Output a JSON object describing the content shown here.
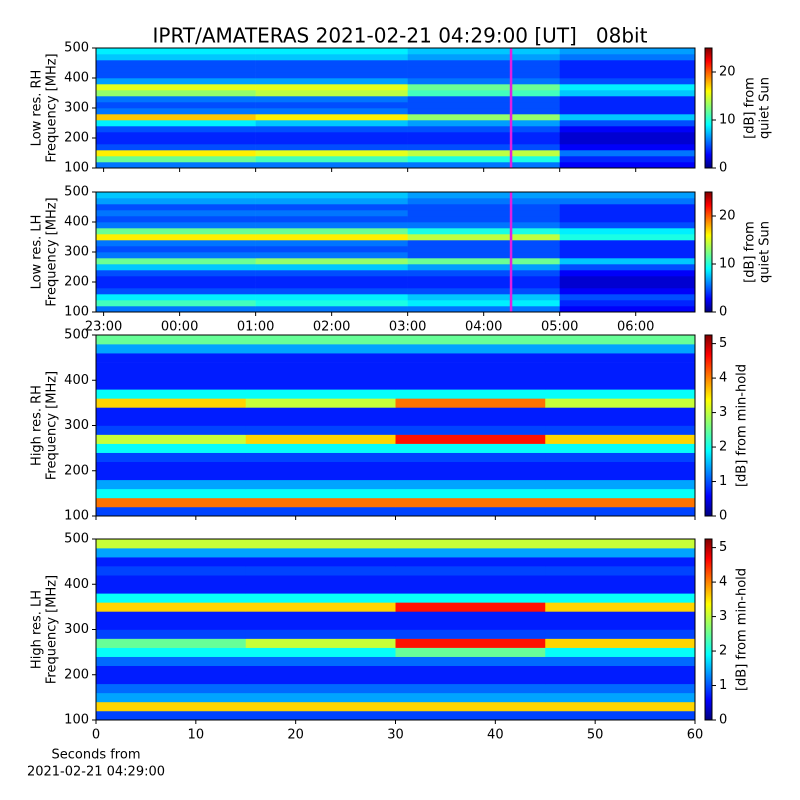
{
  "title": "IPRT/AMATERAS 2021-02-21 04:29:00 [UT]   08bit",
  "chart_data": [
    {
      "type": "heatmap",
      "ylabel": [
        "Low res. RH",
        "Frequency [MHz]"
      ],
      "xlim": [
        22.9,
        30.78
      ],
      "xticks": [
        23,
        24,
        25,
        26,
        27,
        28,
        29,
        30
      ],
      "xtick_labels": false,
      "ylim": [
        100,
        500
      ],
      "yticks": [
        100,
        200,
        300,
        400,
        500
      ],
      "x_bins": [
        22.9,
        25,
        27,
        29,
        30.78
      ],
      "y_bins": [
        100,
        120,
        140,
        160,
        180,
        200,
        220,
        240,
        260,
        280,
        300,
        320,
        340,
        360,
        380,
        400,
        420,
        440,
        460,
        480,
        500
      ],
      "z": [
        [
          6,
          6,
          6,
          3
        ],
        [
          12,
          11,
          10,
          4
        ],
        [
          16,
          15,
          14,
          6
        ],
        [
          5,
          5,
          5,
          3
        ],
        [
          4,
          4,
          4,
          2
        ],
        [
          4,
          4,
          4,
          2
        ],
        [
          5,
          5,
          5,
          3
        ],
        [
          9,
          8,
          7,
          5
        ],
        [
          17,
          16,
          13,
          8
        ],
        [
          6,
          6,
          5,
          4
        ],
        [
          5,
          5,
          5,
          4
        ],
        [
          6,
          6,
          5,
          4
        ],
        [
          13,
          14,
          11,
          8
        ],
        [
          15,
          15,
          12,
          9
        ],
        [
          7,
          7,
          6,
          5
        ],
        [
          5,
          5,
          5,
          4
        ],
        [
          5,
          5,
          5,
          4
        ],
        [
          5,
          5,
          5,
          4
        ],
        [
          8,
          8,
          7,
          6
        ],
        [
          9,
          9,
          8,
          7
        ]
      ],
      "clim": [
        0,
        25
      ],
      "cticks": [
        0,
        10,
        20
      ],
      "clabel": [
        "[dB] from",
        "quiet Sun"
      ],
      "vline": {
        "x": 28.36,
        "color": "#e020e0"
      }
    },
    {
      "type": "heatmap",
      "ylabel": [
        "Low res. LH",
        "Frequency [MHz]"
      ],
      "xlim": [
        22.9,
        30.78
      ],
      "xticks": [
        {
          "value": 23,
          "label": "23:00"
        },
        {
          "value": 24,
          "label": "00:00"
        },
        {
          "value": 25,
          "label": "01:00"
        },
        {
          "value": 26,
          "label": "02:00"
        },
        {
          "value": 27,
          "label": "03:00"
        },
        {
          "value": 28,
          "label": "04:00"
        },
        {
          "value": 29,
          "label": "05:00"
        },
        {
          "value": 30,
          "label": "06:00"
        }
      ],
      "xtick_labels": true,
      "ylim": [
        100,
        500
      ],
      "yticks": [
        100,
        200,
        300,
        400,
        500
      ],
      "x_bins": [
        22.9,
        25,
        27,
        29,
        30.78
      ],
      "y_bins": [
        100,
        120,
        140,
        160,
        180,
        200,
        220,
        240,
        260,
        280,
        300,
        320,
        340,
        360,
        380,
        400,
        420,
        440,
        460,
        480,
        500
      ],
      "z": [
        [
          6,
          6,
          6,
          3
        ],
        [
          11,
          10,
          9,
          4
        ],
        [
          9,
          9,
          8,
          5
        ],
        [
          5,
          5,
          5,
          3
        ],
        [
          4,
          4,
          4,
          2
        ],
        [
          4,
          4,
          4,
          2
        ],
        [
          5,
          5,
          5,
          3
        ],
        [
          8,
          8,
          7,
          5
        ],
        [
          12,
          13,
          12,
          8
        ],
        [
          6,
          6,
          5,
          4
        ],
        [
          5,
          5,
          5,
          4
        ],
        [
          6,
          6,
          5,
          4
        ],
        [
          16,
          16,
          14,
          10
        ],
        [
          12,
          12,
          10,
          9
        ],
        [
          6,
          6,
          6,
          5
        ],
        [
          5,
          5,
          5,
          4
        ],
        [
          6,
          6,
          5,
          4
        ],
        [
          5,
          5,
          5,
          4
        ],
        [
          7,
          7,
          6,
          6
        ],
        [
          8,
          8,
          7,
          7
        ]
      ],
      "clim": [
        0,
        25
      ],
      "cticks": [
        0,
        10,
        20
      ],
      "clabel": [
        "[dB] from",
        "quiet Sun"
      ],
      "vline": {
        "x": 28.36,
        "color": "#e020e0"
      }
    },
    {
      "type": "heatmap",
      "ylabel": [
        "High res. RH",
        "Frequency [MHz]"
      ],
      "xlim": [
        0,
        60
      ],
      "xticks": [
        0,
        10,
        20,
        30,
        40,
        50,
        60
      ],
      "xtick_labels": false,
      "ylim": [
        100,
        500
      ],
      "yticks": [
        100,
        200,
        300,
        400,
        500
      ],
      "x_bins": [
        0,
        15,
        30,
        45,
        60
      ],
      "y_bins": [
        100,
        120,
        140,
        160,
        180,
        200,
        220,
        240,
        260,
        280,
        300,
        320,
        340,
        360,
        380,
        400,
        420,
        440,
        460,
        480,
        500
      ],
      "z": [
        [
          1,
          1,
          1,
          1
        ],
        [
          4,
          4,
          4,
          4
        ],
        [
          2,
          2,
          2,
          2
        ],
        [
          1.5,
          1.5,
          1.5,
          1.5
        ],
        [
          0.8,
          0.8,
          0.8,
          0.8
        ],
        [
          0.8,
          0.8,
          0.8,
          0.8
        ],
        [
          1,
          1,
          1,
          1
        ],
        [
          2,
          2,
          2,
          2
        ],
        [
          3,
          3.5,
          4.5,
          3.5
        ],
        [
          1,
          1,
          1,
          1
        ],
        [
          0.8,
          0.8,
          0.8,
          0.8
        ],
        [
          0.8,
          0.8,
          0.8,
          0.8
        ],
        [
          3.5,
          3,
          4,
          3
        ],
        [
          2,
          2,
          2,
          2
        ],
        [
          0.8,
          0.8,
          0.8,
          0.8
        ],
        [
          0.8,
          0.8,
          0.8,
          0.8
        ],
        [
          0.8,
          0.8,
          0.8,
          0.8
        ],
        [
          0.8,
          0.8,
          0.8,
          0.8
        ],
        [
          1.5,
          1.5,
          1.5,
          1.5
        ],
        [
          2.5,
          2.5,
          2.5,
          2.5
        ]
      ],
      "clim": [
        0,
        5.25
      ],
      "cticks": [
        0,
        1,
        2,
        3,
        4,
        5
      ],
      "clabel": [
        "[dB] from min-hold"
      ]
    },
    {
      "type": "heatmap",
      "ylabel": [
        "High res. LH",
        "Frequency [MHz]"
      ],
      "xlim": [
        0,
        60
      ],
      "xticks": [
        0,
        10,
        20,
        30,
        40,
        50,
        60
      ],
      "xtick_labels": true,
      "xlabel": [
        "Seconds from",
        "2021-02-21 04:29:00"
      ],
      "ylim": [
        100,
        500
      ],
      "yticks": [
        100,
        200,
        300,
        400,
        500
      ],
      "x_bins": [
        0,
        15,
        30,
        45,
        60
      ],
      "y_bins": [
        100,
        120,
        140,
        160,
        180,
        200,
        220,
        240,
        260,
        280,
        300,
        320,
        340,
        360,
        380,
        400,
        420,
        440,
        460,
        480,
        500
      ],
      "z": [
        [
          1,
          1,
          1,
          1
        ],
        [
          3.5,
          3.5,
          3.5,
          3.5
        ],
        [
          1.5,
          1.5,
          1.5,
          1.5
        ],
        [
          1.2,
          1.2,
          1.2,
          1.2
        ],
        [
          0.8,
          0.8,
          0.8,
          0.8
        ],
        [
          0.8,
          0.8,
          0.8,
          0.8
        ],
        [
          1.2,
          1.2,
          1.2,
          1.2
        ],
        [
          2,
          2,
          2.5,
          2
        ],
        [
          2.5,
          3,
          4.5,
          3.5
        ],
        [
          1,
          1,
          1,
          1
        ],
        [
          0.8,
          0.8,
          0.8,
          0.8
        ],
        [
          0.8,
          0.8,
          0.8,
          0.8
        ],
        [
          3.5,
          3.5,
          4.5,
          3.5
        ],
        [
          2,
          2,
          2,
          2
        ],
        [
          0.8,
          0.8,
          0.8,
          0.8
        ],
        [
          0.8,
          0.8,
          0.8,
          0.8
        ],
        [
          1,
          1,
          1,
          1
        ],
        [
          0.8,
          0.8,
          0.8,
          0.8
        ],
        [
          1.5,
          1.5,
          1.5,
          1.5
        ],
        [
          3,
          3,
          3,
          3
        ]
      ],
      "clim": [
        0,
        5.25
      ],
      "cticks": [
        0,
        1,
        2,
        3,
        4,
        5
      ],
      "clabel": [
        "[dB] from min-hold"
      ]
    }
  ]
}
